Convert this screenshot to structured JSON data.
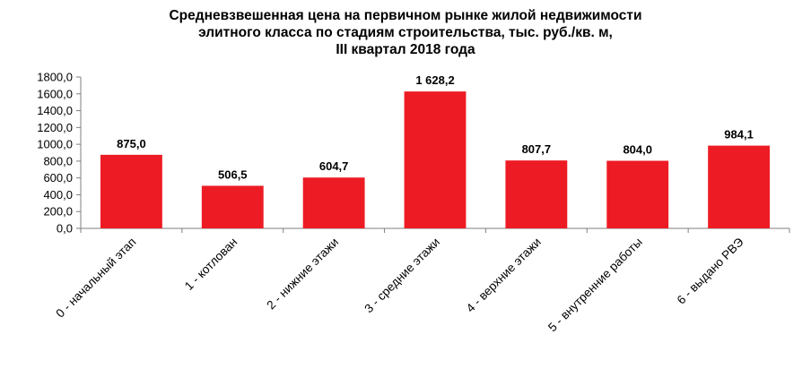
{
  "chart_data": {
    "type": "bar",
    "title_lines": [
      "Средневзвешенная цена на первичном рынке жилой недвижимости",
      "элитного класса по стадиям строительства, тыс. руб./кв. м,",
      "III квартал 2018 года"
    ],
    "categories": [
      "0 - начальный этап",
      "1 - котлован",
      "2 - нижние этажи",
      "3 - средние этажи",
      "4 - верхние этажи",
      "5 - внутренние работы",
      "6 - выдано РВЭ"
    ],
    "values": [
      875.0,
      506.5,
      604.7,
      1628.2,
      807.7,
      804.0,
      984.1
    ],
    "data_labels": [
      "875,0",
      "506,5",
      "604,7",
      "1 628,2",
      "807,7",
      "804,0",
      "984,1"
    ],
    "ylim": [
      0,
      1800
    ],
    "y_ticks": [
      "0,0",
      "200,0",
      "400,0",
      "600,0",
      "800,0",
      "1000,0",
      "1200,0",
      "1400,0",
      "1600,0",
      "1800,0"
    ],
    "bar_color": "#ED1C24",
    "grid": false,
    "legend": "none"
  }
}
